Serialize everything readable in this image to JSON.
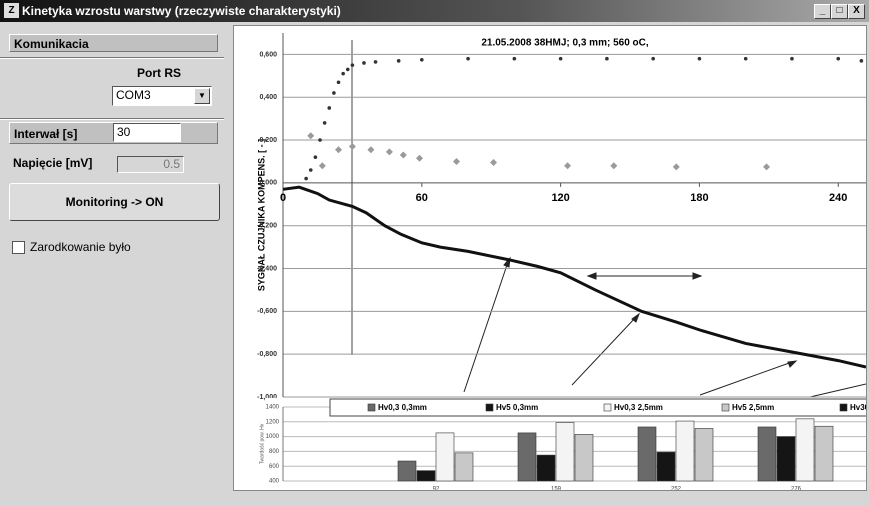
{
  "window": {
    "title": "Kinetyka wzrostu warstwy (rzeczywiste charakterystyki)"
  },
  "panel": {
    "comm_header": "Komunikacia",
    "port_label": "Port RS",
    "port_value": "COM3",
    "interval_label": "Interwał [s]",
    "interval_value": "30",
    "voltage_label": "Napięcie [mV]",
    "voltage_value": "0.5",
    "button": "Monitoring -> ON",
    "checkbox": "Zarodkowanie było"
  },
  "chart_data": [
    {
      "type": "line",
      "title": "21.05.2008 38HMJ; 0,3 mm; 560 oC,",
      "y_label": "SYGNAŁ CZUJNIKA KOMPENS. [ - ]",
      "xlim": [
        0,
        252
      ],
      "xticks": [
        0,
        60,
        120,
        180,
        240
      ],
      "ylim": [
        -1.0,
        0.7
      ],
      "yticks": [
        {
          "value": 0.6,
          "label": "0,600"
        },
        {
          "value": 0.4,
          "label": "0,400"
        },
        {
          "value": 0.2,
          "label": "0,200"
        },
        {
          "value": 0,
          "label": "0,000"
        },
        {
          "value": -0.2,
          "label": "-0,200"
        },
        {
          "value": -0.4,
          "label": "-0,400"
        },
        {
          "value": -0.6,
          "label": "-0,600"
        },
        {
          "value": -0.8,
          "label": "-0,800"
        },
        {
          "value": -1.0,
          "label": "-1,000"
        }
      ],
      "grid": true,
      "series": [
        {
          "marker": "dot",
          "color": "#333333",
          "x": [
            10,
            12,
            14,
            16,
            18,
            20,
            22,
            24,
            26,
            28,
            30,
            35,
            40,
            50,
            60,
            80,
            100,
            120,
            140,
            160,
            180,
            200,
            220,
            240,
            250
          ],
          "values": [
            0.02,
            0.06,
            0.12,
            0.2,
            0.28,
            0.35,
            0.42,
            0.47,
            0.51,
            0.53,
            0.55,
            0.56,
            0.565,
            0.57,
            0.575,
            0.58,
            0.58,
            0.58,
            0.58,
            0.58,
            0.58,
            0.58,
            0.58,
            0.58,
            0.57
          ]
        },
        {
          "marker": "diamond",
          "color": "#9a9a9a",
          "x": [
            12,
            17,
            24,
            30,
            38,
            46,
            52,
            59,
            75,
            91,
            123,
            143,
            170,
            209
          ],
          "values": [
            0.22,
            0.08,
            0.155,
            0.17,
            0.155,
            0.145,
            0.13,
            0.115,
            0.1,
            0.095,
            0.08,
            0.08,
            0.075,
            0.075
          ]
        },
        {
          "marker": "line",
          "color": "#111111",
          "x": [
            0,
            7,
            15,
            20,
            30,
            36,
            44,
            51,
            60,
            68,
            80,
            98,
            110,
            120,
            135,
            155,
            170,
            181,
            200,
            220,
            240,
            252
          ],
          "values": [
            -0.03,
            -0.02,
            -0.05,
            -0.08,
            -0.11,
            -0.14,
            -0.2,
            -0.24,
            -0.28,
            -0.3,
            -0.32,
            -0.36,
            -0.39,
            -0.42,
            -0.5,
            -0.6,
            -0.65,
            -0.69,
            -0.75,
            -0.79,
            -0.83,
            -0.86
          ]
        }
      ]
    },
    {
      "type": "bar",
      "y_label": "Twardość pow. Hv",
      "categories": [
        "92",
        "159",
        "252",
        "276"
      ],
      "ylim": [
        400,
        1400
      ],
      "yticks": [
        400,
        600,
        800,
        1000,
        1200,
        1400
      ],
      "series": [
        {
          "name": "Hv0,3 0,3mm",
          "color": "#6a6a6a",
          "values": [
            670,
            1050,
            1130,
            1130
          ]
        },
        {
          "name": "Hv5 0,3mm",
          "color": "#151515",
          "values": [
            540,
            750,
            790,
            1000
          ]
        },
        {
          "name": "Hv0,3 2,5mm",
          "color": "#f4f4f4",
          "values": [
            1050,
            1190,
            1210,
            1240
          ]
        },
        {
          "name": "Hv5 2,5mm",
          "color": "#c8c8c8",
          "values": [
            780,
            1030,
            1110,
            1140
          ]
        },
        {
          "name": "Hv30",
          "color": "#151515",
          "values": [
            null,
            null,
            null,
            null
          ]
        }
      ]
    }
  ]
}
